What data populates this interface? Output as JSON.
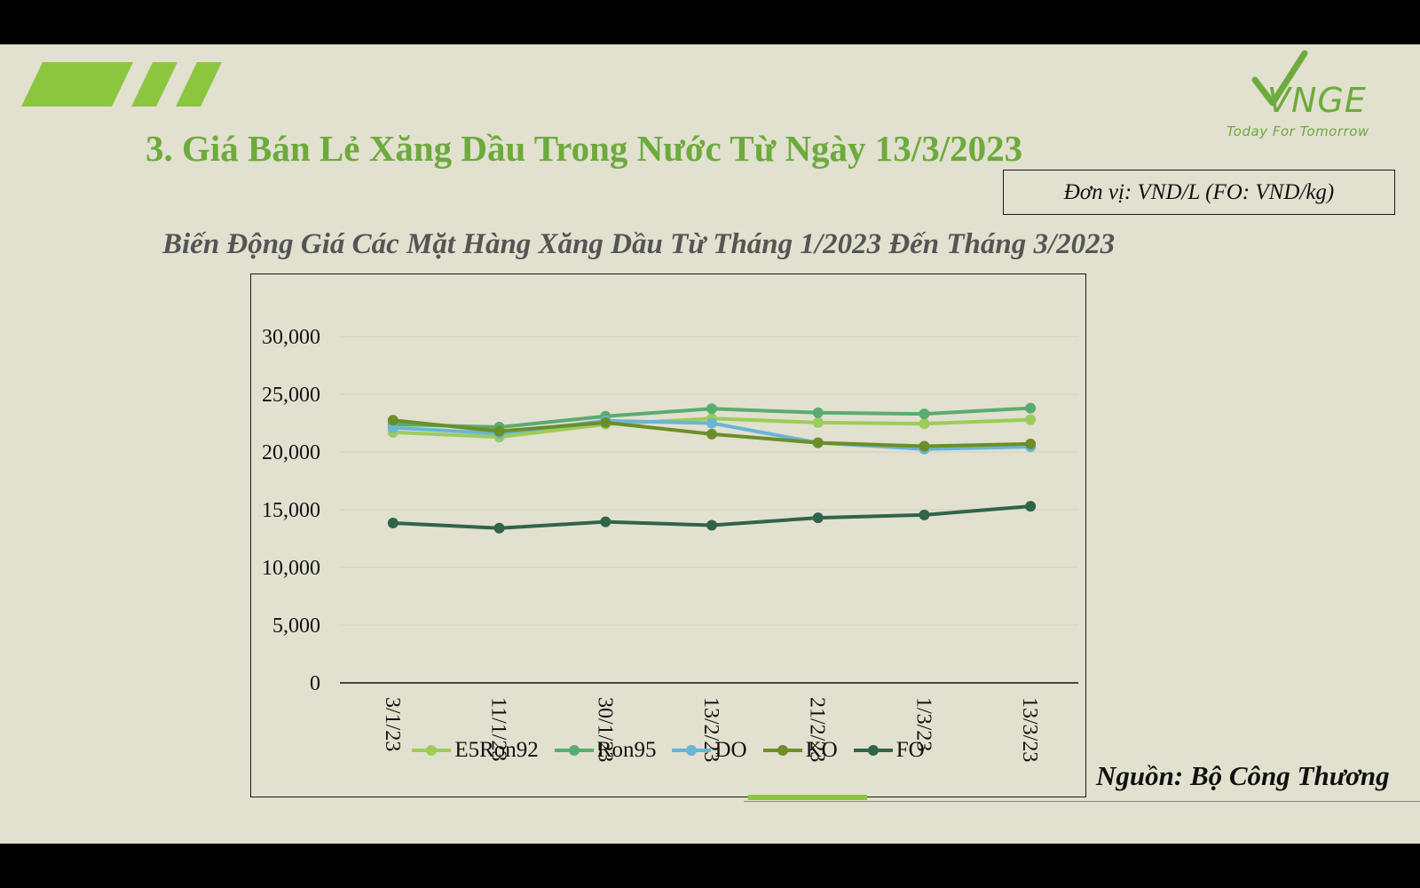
{
  "slide": {
    "title": "3. Giá Bán Lẻ Xăng Dầu Trong Nước Từ Ngày 13/3/2023",
    "unit_note": "Đơn vị: VND/L (FO: VND/kg)",
    "source": "Nguồn: Bộ Công Thương",
    "logo_text": "VNGE",
    "logo_tagline": "Today For Tomorrow",
    "accent_color": "#8cc63f",
    "title_color": "#6cab3c",
    "background_color": "#e2e0cf"
  },
  "chart_data": {
    "type": "line",
    "title": "Biến Động Giá Các Mặt Hàng Xăng Dầu Từ Tháng 1/2023 Đến Tháng 3/2023",
    "xlabel": "",
    "ylabel": "",
    "ylim": [
      0,
      30000
    ],
    "y_ticks": [
      0,
      5000,
      10000,
      15000,
      20000,
      25000,
      30000
    ],
    "y_tick_labels": [
      "0",
      "5,000",
      "10,000",
      "15,000",
      "20,000",
      "25,000",
      "30,000"
    ],
    "categories": [
      "3/1/23",
      "11/1/23",
      "30/1/23",
      "13/2/23",
      "21/2/23",
      "1/3/23",
      "13/3/23"
    ],
    "grid": true,
    "legend_position": "bottom",
    "series": [
      {
        "name": "E5Ron92",
        "color": "#9ccc5a",
        "values": [
          21700,
          21300,
          22400,
          22900,
          22550,
          22450,
          22800
        ]
      },
      {
        "name": "Ron95",
        "color": "#5aac6e",
        "values": [
          22400,
          22150,
          23100,
          23750,
          23400,
          23300,
          23800
        ]
      },
      {
        "name": "DO",
        "color": "#6ab4d6",
        "values": [
          22100,
          21600,
          22700,
          22500,
          20800,
          20250,
          20450
        ]
      },
      {
        "name": "KO",
        "color": "#6b8e2a",
        "values": [
          22750,
          21800,
          22550,
          21550,
          20800,
          20500,
          20700
        ]
      },
      {
        "name": "FO",
        "color": "#30644a",
        "values": [
          13850,
          13400,
          13950,
          13650,
          14300,
          14550,
          15300
        ]
      }
    ]
  }
}
